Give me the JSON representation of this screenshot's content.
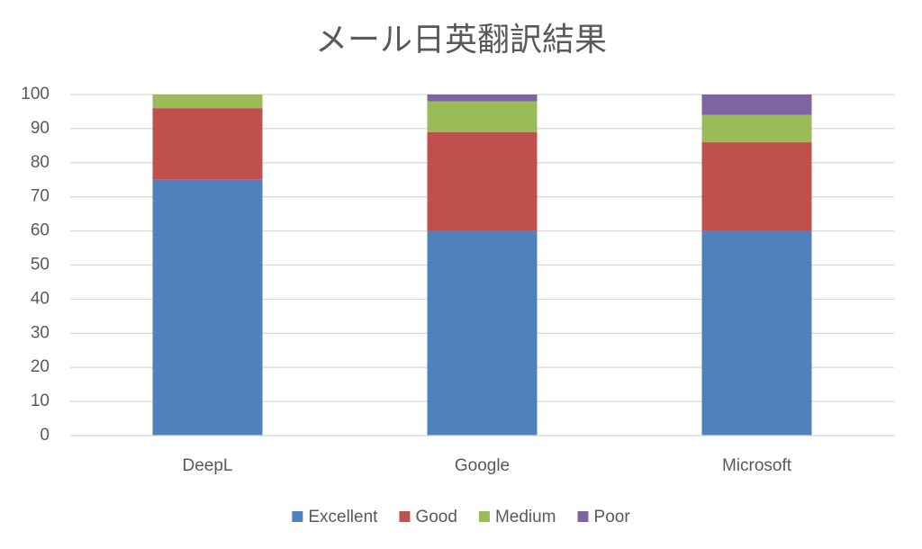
{
  "chart_data": {
    "type": "bar",
    "stacked": true,
    "title": "メール日英翻訳結果",
    "categories": [
      "DeepL",
      "Google",
      "Microsoft"
    ],
    "series": [
      {
        "name": "Excellent",
        "color": "#4f81bd",
        "values": [
          75,
          60,
          60
        ]
      },
      {
        "name": "Good",
        "color": "#c0504d",
        "values": [
          21,
          29,
          26
        ]
      },
      {
        "name": "Medium",
        "color": "#9bbb59",
        "values": [
          4,
          9,
          8
        ]
      },
      {
        "name": "Poor",
        "color": "#8064a2",
        "values": [
          0,
          2,
          6
        ]
      }
    ],
    "ylim": [
      0,
      100
    ],
    "yticks": [
      0,
      10,
      20,
      30,
      40,
      50,
      60,
      70,
      80,
      90,
      100
    ],
    "grid": true,
    "legend": "bottom"
  }
}
